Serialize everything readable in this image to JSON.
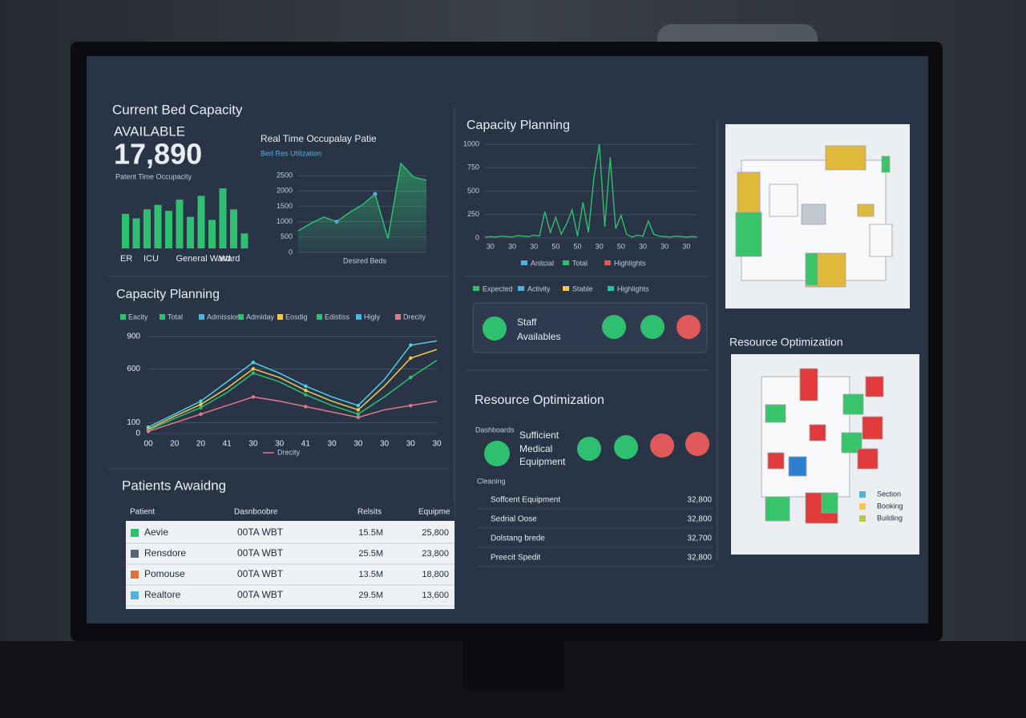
{
  "bed_capacity": {
    "title": "Current Bed Capacity",
    "label": "AVAILABLE",
    "value": "17,890",
    "note": "Patent Time Occupacity",
    "bars": {
      "type": "bar",
      "categories": [
        "ER",
        null,
        "ICU",
        null,
        null,
        "General Ward",
        null,
        null,
        null,
        "Ward",
        null,
        null
      ],
      "values": [
        46,
        40,
        52,
        58,
        50,
        65,
        42,
        70,
        38,
        80,
        52,
        20
      ],
      "color": "#2fbf71"
    }
  },
  "occupancy": {
    "type": "area",
    "title": "Real Time Occupalay Patie",
    "legend": "Bed Res Utilization",
    "x_label": "Desired Beds",
    "ylim": [
      0,
      3000
    ],
    "yticks": [
      0,
      500,
      1000,
      1500,
      2000,
      2500
    ],
    "values": [
      700,
      950,
      1150,
      1000,
      1300,
      1550,
      1900,
      450,
      2900,
      2450,
      2350
    ],
    "color": "#2fbf71"
  },
  "capacity_top": {
    "type": "line",
    "title": "Capacity Planning",
    "xlim": [
      0,
      39
    ],
    "ylim": [
      0,
      1000
    ],
    "yticks": [
      0,
      250,
      500,
      750,
      1000
    ],
    "xticks": [
      {
        "value": 1,
        "label": "30"
      },
      {
        "value": 5,
        "label": "30"
      },
      {
        "value": 9,
        "label": "30"
      },
      {
        "value": 13,
        "label": "50"
      },
      {
        "value": 17,
        "label": "50"
      },
      {
        "value": 21,
        "label": "30"
      },
      {
        "value": 25,
        "label": "50"
      },
      {
        "value": 29,
        "label": "30"
      },
      {
        "value": 33,
        "label": "30"
      },
      {
        "value": 37,
        "label": "30"
      }
    ],
    "values": [
      10,
      15,
      10,
      20,
      15,
      10,
      25,
      20,
      15,
      30,
      20,
      280,
      60,
      220,
      40,
      150,
      300,
      20,
      380,
      60,
      640,
      1000,
      120,
      860,
      100,
      240,
      40,
      10,
      30,
      20,
      180,
      40,
      20,
      15,
      10,
      20,
      15,
      10,
      15,
      10
    ],
    "color": "#2fbf71",
    "legend": [
      {
        "name": "Anitcial",
        "color": "#4fb3d9"
      },
      {
        "name": "Total",
        "color": "#2fbf71"
      },
      {
        "name": "Highlights",
        "color": "#e05a5a"
      }
    ]
  },
  "capacity_left": {
    "type": "line",
    "title": "Capacity Planning",
    "legend": [
      {
        "name": "Eacity",
        "color": "#2fbf71"
      },
      {
        "name": "Total",
        "color": "#2fbf71"
      },
      {
        "name": "Admission",
        "color": "#4fb3d9"
      },
      {
        "name": "Admiday",
        "color": "#2fbf71"
      },
      {
        "name": "Eosdig",
        "color": "#f2c94c"
      },
      {
        "name": "Edistiss",
        "color": "#2fbf71"
      },
      {
        "name": "Higly",
        "color": "#4fb3d9"
      },
      {
        "name": "Drecity",
        "color": "#e07a8a"
      }
    ],
    "ylim": [
      0,
      900
    ],
    "yticks": [
      0,
      100,
      600,
      900
    ],
    "categories": [
      "00",
      "20",
      "20",
      "41",
      "30",
      "30",
      "41",
      "30",
      "30",
      "30",
      "30",
      "30"
    ],
    "series": [
      {
        "color": "#4fd0e8",
        "values": [
          60,
          180,
          300,
          480,
          660,
          560,
          440,
          340,
          260,
          500,
          820,
          860
        ]
      },
      {
        "color": "#f2c94c",
        "values": [
          40,
          160,
          270,
          420,
          600,
          520,
          400,
          300,
          220,
          440,
          700,
          780
        ]
      },
      {
        "color": "#2fbf71",
        "values": [
          30,
          140,
          240,
          380,
          560,
          480,
          360,
          260,
          180,
          340,
          520,
          680
        ]
      },
      {
        "color": "#e07a8a",
        "values": [
          20,
          100,
          180,
          260,
          340,
          300,
          250,
          200,
          150,
          220,
          260,
          300
        ]
      }
    ]
  },
  "legend_mid": [
    {
      "name": "Expected",
      "color": "#2fbf71"
    },
    {
      "name": "Activity",
      "color": "#4fb3d9"
    },
    {
      "name": "Stable",
      "color": "#f2c94c"
    },
    {
      "name": "Highlights",
      "color": "#2fbf9f"
    }
  ],
  "staff": {
    "lines": [
      "Staff",
      "Availables"
    ]
  },
  "resource": {
    "title": "Resource Optimization",
    "side_label": "Dashboards",
    "equipment": [
      "Sufficient",
      "Medical",
      "Equipment"
    ],
    "heading": "Cleaning",
    "items": [
      {
        "label": "Soffcent Equipment",
        "value": "32,800"
      },
      {
        "label": "Sedrial Oose",
        "value": "32,800"
      },
      {
        "label": "Dolstang brede",
        "value": "32,700"
      },
      {
        "label": "Preecit Spedit",
        "value": "32,800"
      }
    ]
  },
  "patients": {
    "title": "Patients Awaidng",
    "columns": [
      "Patient",
      "Dasnboobre",
      "Relsits",
      "Equipme"
    ],
    "rows": [
      [
        "Aevie",
        "00TA WBT",
        "15.5M",
        "25,800"
      ],
      [
        "Rensdore",
        "00TA WBT",
        "25.5M",
        "23,800"
      ],
      [
        "Pomouse",
        "00TA WBT",
        "13.5M",
        "18,800"
      ],
      [
        "Realtore",
        "00TA WBT",
        "29.5M",
        "13,600"
      ]
    ]
  },
  "maps": {
    "title": "Resource Optimization",
    "legend": [
      {
        "name": "Section",
        "color": "#4fb3d9"
      },
      {
        "name": "Booking",
        "color": "#f2c94c"
      },
      {
        "name": "Building",
        "color": "#b5c94c"
      }
    ]
  }
}
